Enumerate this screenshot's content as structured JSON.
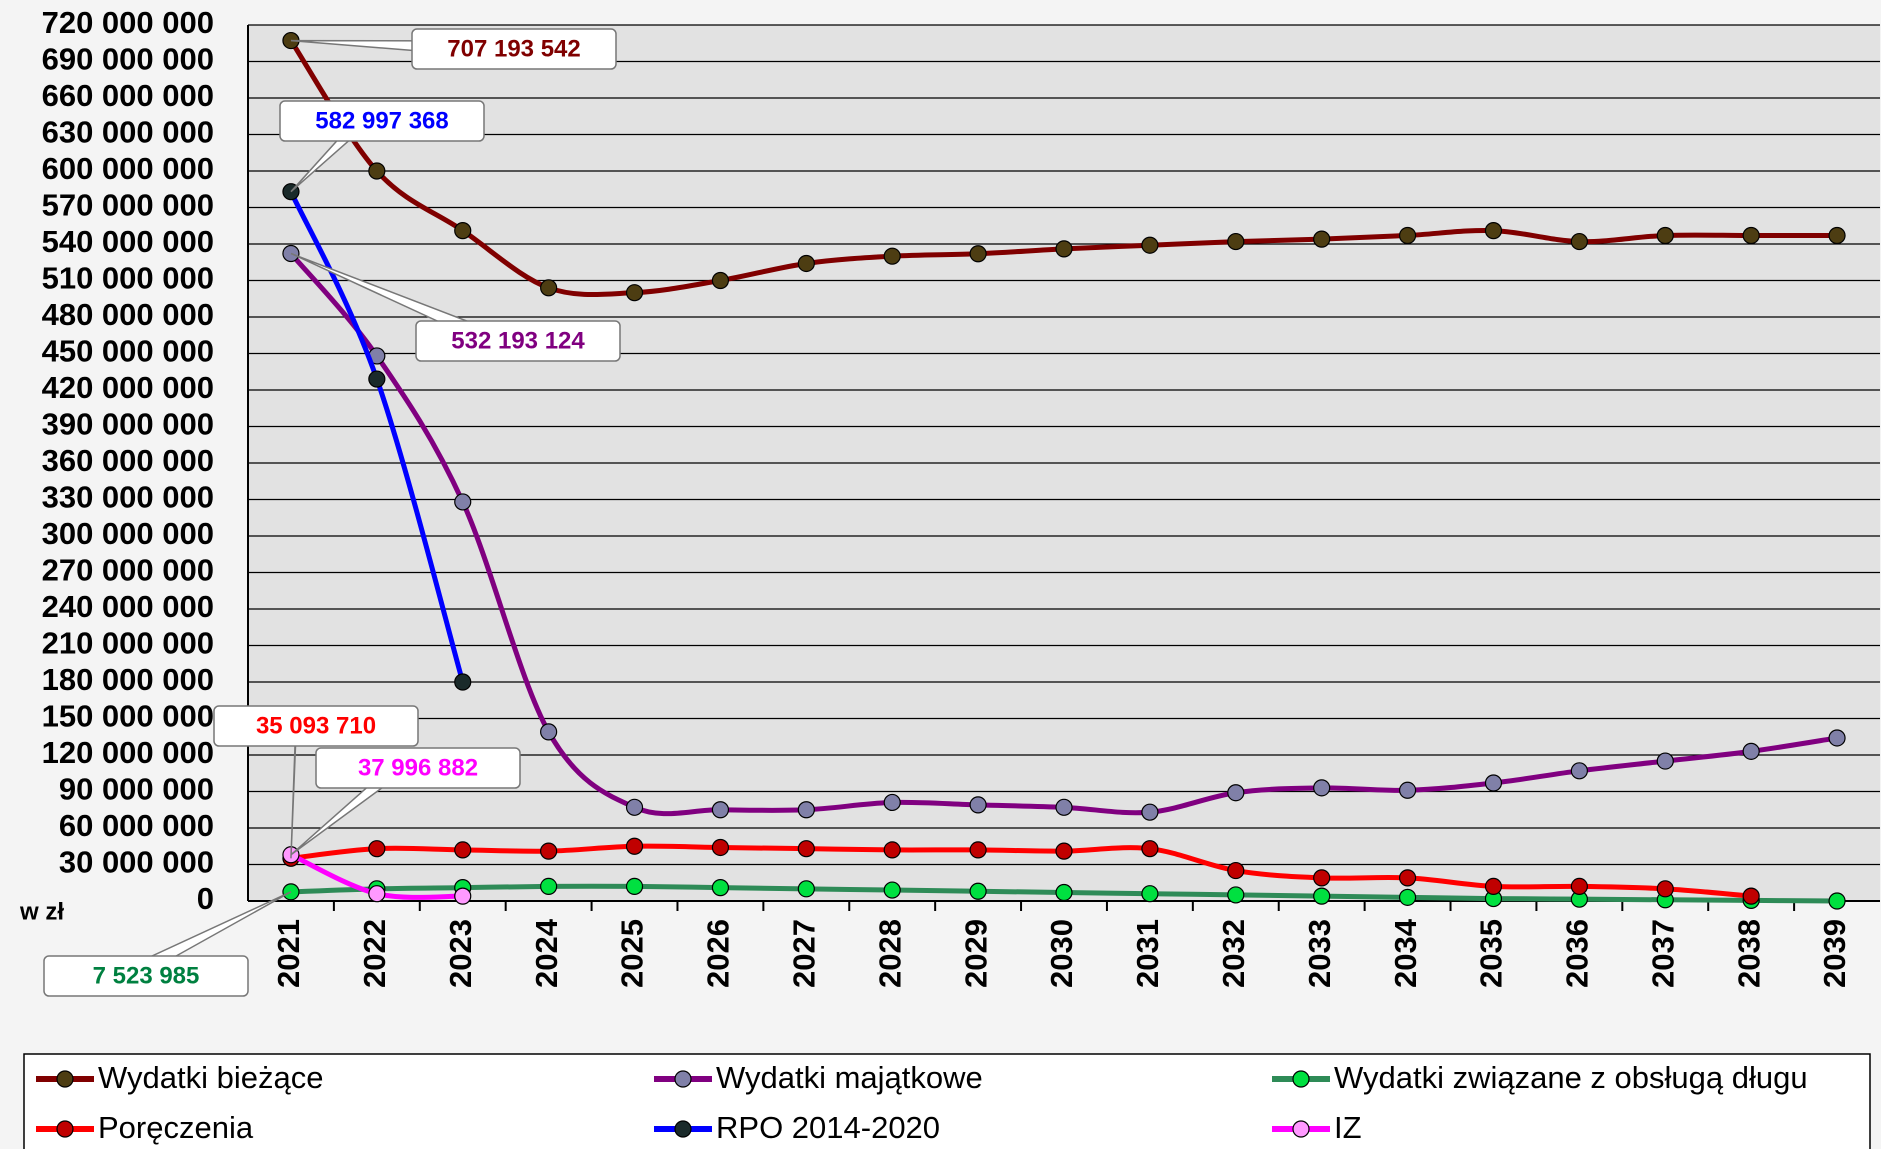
{
  "chart_data": {
    "type": "line",
    "y_label": "w zł",
    "categories": [
      "2021",
      "2022",
      "2023",
      "2024",
      "2025",
      "2026",
      "2027",
      "2028",
      "2029",
      "2030",
      "2031",
      "2032",
      "2033",
      "2034",
      "2035",
      "2036",
      "2037",
      "2038",
      "2039"
    ],
    "ylim": [
      0,
      720000000
    ],
    "yticks": [
      0,
      {
        "value": 30000000,
        "label": "30 000 000"
      },
      {
        "value": 60000000,
        "label": "60 000 000"
      },
      {
        "value": 90000000,
        "label": "90 000 000"
      },
      {
        "value": 120000000,
        "label": "120 000 000"
      },
      {
        "value": 150000000,
        "label": "150 000 000"
      },
      {
        "value": 180000000,
        "label": "180 000 000"
      },
      {
        "value": 210000000,
        "label": "210 000 000"
      },
      {
        "value": 240000000,
        "label": "240 000 000"
      },
      {
        "value": 270000000,
        "label": "270 000 000"
      },
      {
        "value": 300000000,
        "label": "300 000 000"
      },
      {
        "value": 330000000,
        "label": "330 000 000"
      },
      {
        "value": 360000000,
        "label": "360 000 000"
      },
      {
        "value": 390000000,
        "label": "390 000 000"
      },
      {
        "value": 420000000,
        "label": "420 000 000"
      },
      {
        "value": 450000000,
        "label": "450 000 000"
      },
      {
        "value": 480000000,
        "label": "480 000 000"
      },
      {
        "value": 510000000,
        "label": "510 000 000"
      },
      {
        "value": 540000000,
        "label": "540 000 000"
      },
      {
        "value": 570000000,
        "label": "570 000 000"
      },
      {
        "value": 600000000,
        "label": "600 000 000"
      },
      {
        "value": 630000000,
        "label": "630 000 000"
      },
      {
        "value": 660000000,
        "label": "660 000 000"
      },
      {
        "value": 690000000,
        "label": "690 000 000"
      },
      {
        "value": 720000000,
        "label": "720 000 000"
      }
    ],
    "grid": true,
    "legend": "bottom",
    "series": [
      {
        "name": "Wydatki bieżące",
        "color": "#800000",
        "marker_color": "#4d3d12",
        "values": [
          707193542,
          600000000,
          551000000,
          504000000,
          500000000,
          510000000,
          524000000,
          530000000,
          532000000,
          536000000,
          539000000,
          542000000,
          544000000,
          547000000,
          551000000,
          542000000,
          547000000,
          547000000,
          547000000
        ],
        "value_labels": [
          "707 193 542",
          null,
          null,
          null,
          null,
          null,
          null,
          null,
          null,
          null,
          null,
          null,
          null,
          null,
          null,
          null,
          null,
          null,
          null
        ]
      },
      {
        "name": "Wydatki majątkowe",
        "color": "#800080",
        "marker_color": "#8080a8",
        "values": [
          532193124,
          448000000,
          328000000,
          139000000,
          77000000,
          75000000,
          75000000,
          81000000,
          79000000,
          77000000,
          73000000,
          89000000,
          93000000,
          91000000,
          97000000,
          107000000,
          115000000,
          123000000,
          134000000
        ],
        "value_labels": [
          "532 193 124",
          null,
          null,
          null,
          null,
          null,
          null,
          null,
          null,
          null,
          null,
          null,
          null,
          null,
          null,
          null,
          null,
          null,
          null
        ]
      },
      {
        "name": "Wydatki związane z obsługą długu",
        "color": "#2e8b57",
        "marker_color": "#00e040",
        "label_color": "#008040",
        "values": [
          7523985,
          10000000,
          11000000,
          12000000,
          12000000,
          11000000,
          10000000,
          9000000,
          8000000,
          7000000,
          6000000,
          5000000,
          4000000,
          3000000,
          2000000,
          1500000,
          1000000,
          500000,
          0
        ],
        "value_labels": [
          "7 523 985",
          null,
          null,
          null,
          null,
          null,
          null,
          null,
          null,
          null,
          null,
          null,
          null,
          null,
          null,
          null,
          null,
          null,
          null
        ]
      },
      {
        "name": "Poręczenia",
        "color": "#ff0000",
        "marker_color": "#c00000",
        "values": [
          35093710,
          43000000,
          42000000,
          41000000,
          45000000,
          44000000,
          43000000,
          42000000,
          42000000,
          41000000,
          43000000,
          25000000,
          19000000,
          19000000,
          12000000,
          12000000,
          10000000,
          4000000,
          null
        ],
        "value_labels": [
          "35 093 710",
          null,
          null,
          null,
          null,
          null,
          null,
          null,
          null,
          null,
          null,
          null,
          null,
          null,
          null,
          null,
          null,
          null,
          null
        ]
      },
      {
        "name": "RPO 2014-2020",
        "color": "#0000ff",
        "marker_color": "#1a2a2a",
        "values": [
          582997368,
          429000000,
          180000000,
          null,
          null,
          null,
          null,
          null,
          null,
          null,
          null,
          null,
          null,
          null,
          null,
          null,
          null,
          null,
          null
        ],
        "value_labels": [
          "582 997 368",
          null,
          null,
          null,
          null,
          null,
          null,
          null,
          null,
          null,
          null,
          null,
          null,
          null,
          null,
          null,
          null,
          null,
          null
        ]
      },
      {
        "name": "IZ",
        "color": "#ff00ff",
        "marker_color": "#ff99ff",
        "values": [
          37996882,
          6000000,
          4000000,
          null,
          null,
          null,
          null,
          null,
          null,
          null,
          null,
          null,
          null,
          null,
          null,
          null,
          null,
          null,
          null
        ],
        "value_labels": [
          "37 996 882",
          null,
          null,
          null,
          null,
          null,
          null,
          null,
          null,
          null,
          null,
          null,
          null,
          null,
          null,
          null,
          null,
          null,
          null
        ]
      }
    ]
  }
}
